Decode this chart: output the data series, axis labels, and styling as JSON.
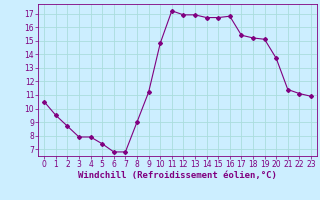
{
  "x": [
    0,
    1,
    2,
    3,
    4,
    5,
    6,
    7,
    8,
    9,
    10,
    11,
    12,
    13,
    14,
    15,
    16,
    17,
    18,
    19,
    20,
    21,
    22,
    23
  ],
  "y": [
    10.5,
    9.5,
    8.7,
    7.9,
    7.9,
    7.4,
    6.8,
    6.8,
    9.0,
    11.2,
    14.8,
    17.2,
    16.9,
    16.9,
    16.7,
    16.7,
    16.8,
    15.4,
    15.2,
    15.1,
    13.7,
    11.4,
    11.1,
    10.9
  ],
  "line_color": "#800080",
  "marker": "D",
  "marker_size": 2,
  "bg_color": "#cceeff",
  "grid_color": "#aadddd",
  "xlabel": "Windchill (Refroidissement éolien,°C)",
  "ylim": [
    6.5,
    17.7
  ],
  "yticks": [
    7,
    8,
    9,
    10,
    11,
    12,
    13,
    14,
    15,
    16,
    17
  ],
  "xlim": [
    -0.5,
    23.5
  ],
  "xticks": [
    0,
    1,
    2,
    3,
    4,
    5,
    6,
    7,
    8,
    9,
    10,
    11,
    12,
    13,
    14,
    15,
    16,
    17,
    18,
    19,
    20,
    21,
    22,
    23
  ],
  "tick_fontsize": 5.5,
  "label_fontsize": 6.5
}
